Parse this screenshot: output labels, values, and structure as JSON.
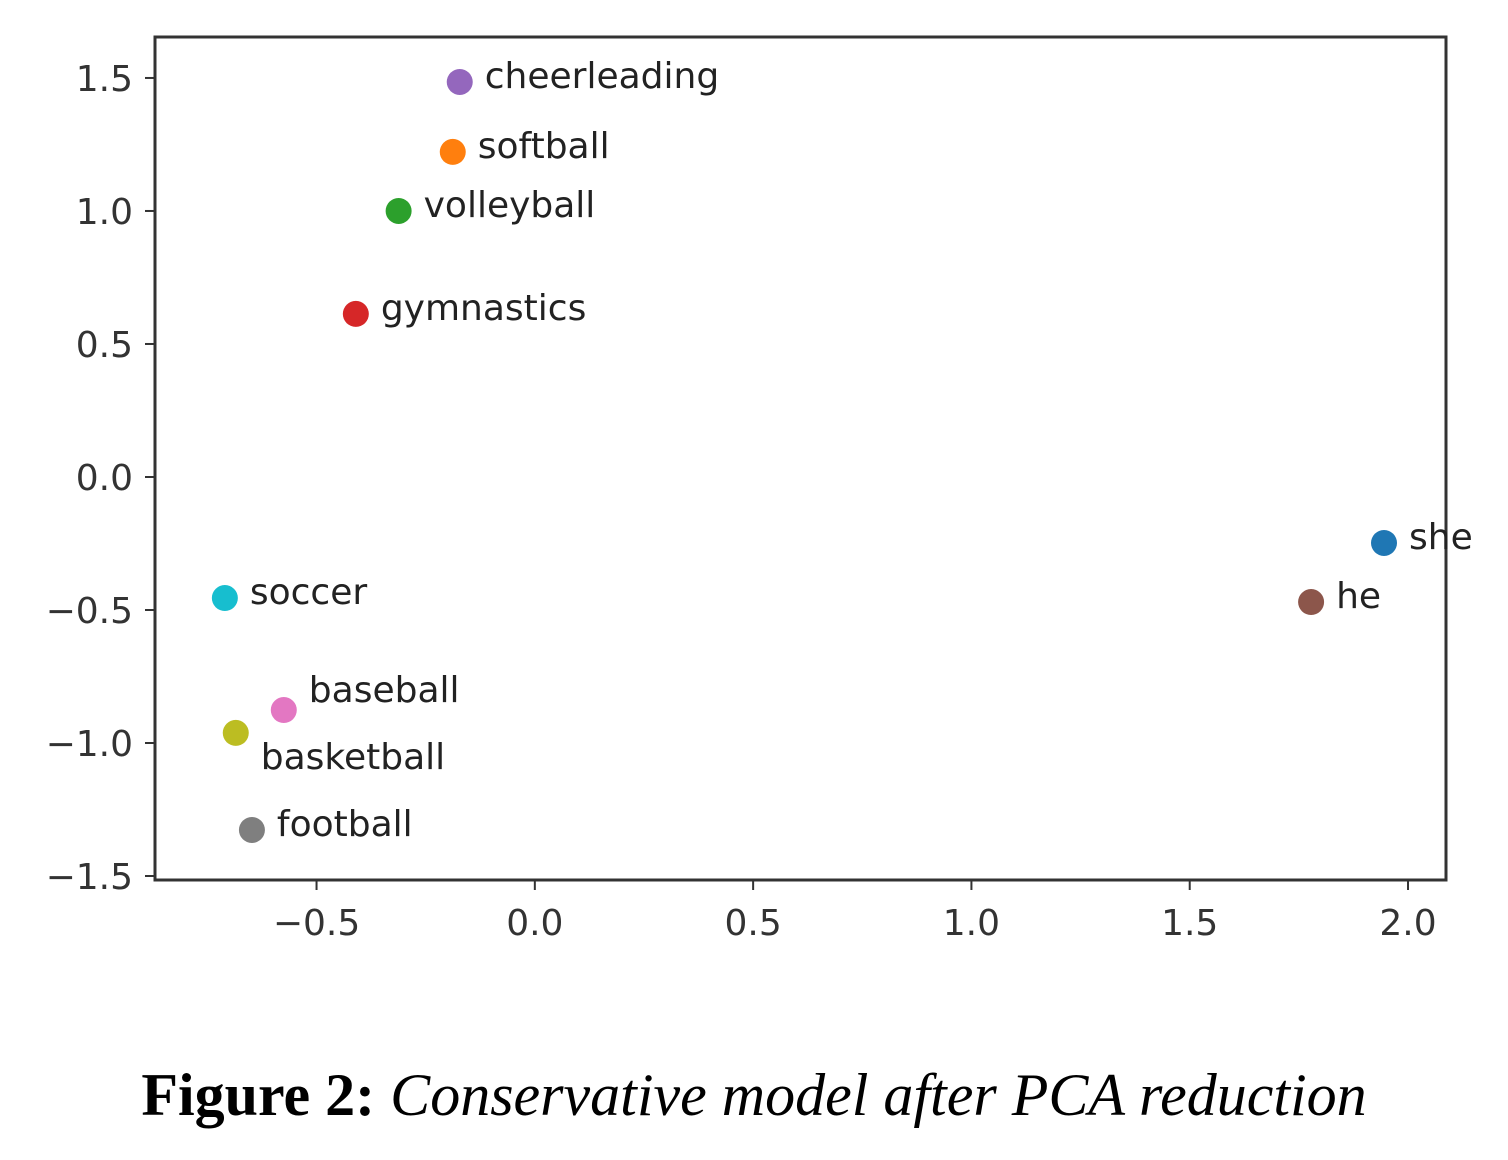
{
  "chart_data": {
    "type": "scatter",
    "title": "",
    "xlabel": "",
    "ylabel": "",
    "xlim": [
      -0.87,
      2.087
    ],
    "ylim": [
      -1.515,
      1.654
    ],
    "xticks": [
      -0.5,
      0.0,
      0.5,
      1.0,
      1.5,
      2.0
    ],
    "xtick_labels": [
      "−0.5",
      "0.0",
      "0.5",
      "1.0",
      "1.5",
      "2.0"
    ],
    "yticks": [
      1.5,
      1.0,
      0.5,
      0.0,
      -0.5,
      -1.0,
      -1.5
    ],
    "ytick_labels": [
      "1.5",
      "1.0",
      "0.5",
      "0.0",
      "−0.5",
      "−1.0",
      "−1.5"
    ],
    "grid": false,
    "points": [
      {
        "label": "she",
        "x": 1.945,
        "y": -0.248,
        "color": "#1f77b4"
      },
      {
        "label": "softball",
        "x": -0.188,
        "y": 1.222,
        "color": "#ff7f0e"
      },
      {
        "label": "volleyball",
        "x": -0.312,
        "y": 1.0,
        "color": "#2ca02c"
      },
      {
        "label": "gymnastics",
        "x": -0.41,
        "y": 0.613,
        "color": "#d62728"
      },
      {
        "label": "cheerleading",
        "x": -0.172,
        "y": 1.485,
        "color": "#9467bd"
      },
      {
        "label": "he",
        "x": 1.778,
        "y": -0.47,
        "color": "#8c564b"
      },
      {
        "label": "baseball",
        "x": -0.575,
        "y": -0.876,
        "color": "#e377c2"
      },
      {
        "label": "football",
        "x": -0.648,
        "y": -1.327,
        "color": "#7f7f7f"
      },
      {
        "label": "basketball",
        "x": -0.685,
        "y": -0.962,
        "color": "#bcbd22"
      },
      {
        "label": "soccer",
        "x": -0.71,
        "y": -0.455,
        "color": "#17becf"
      }
    ]
  },
  "caption": {
    "prefix": "Figure 2:",
    "text": "Conservative model after PCA reduction"
  }
}
